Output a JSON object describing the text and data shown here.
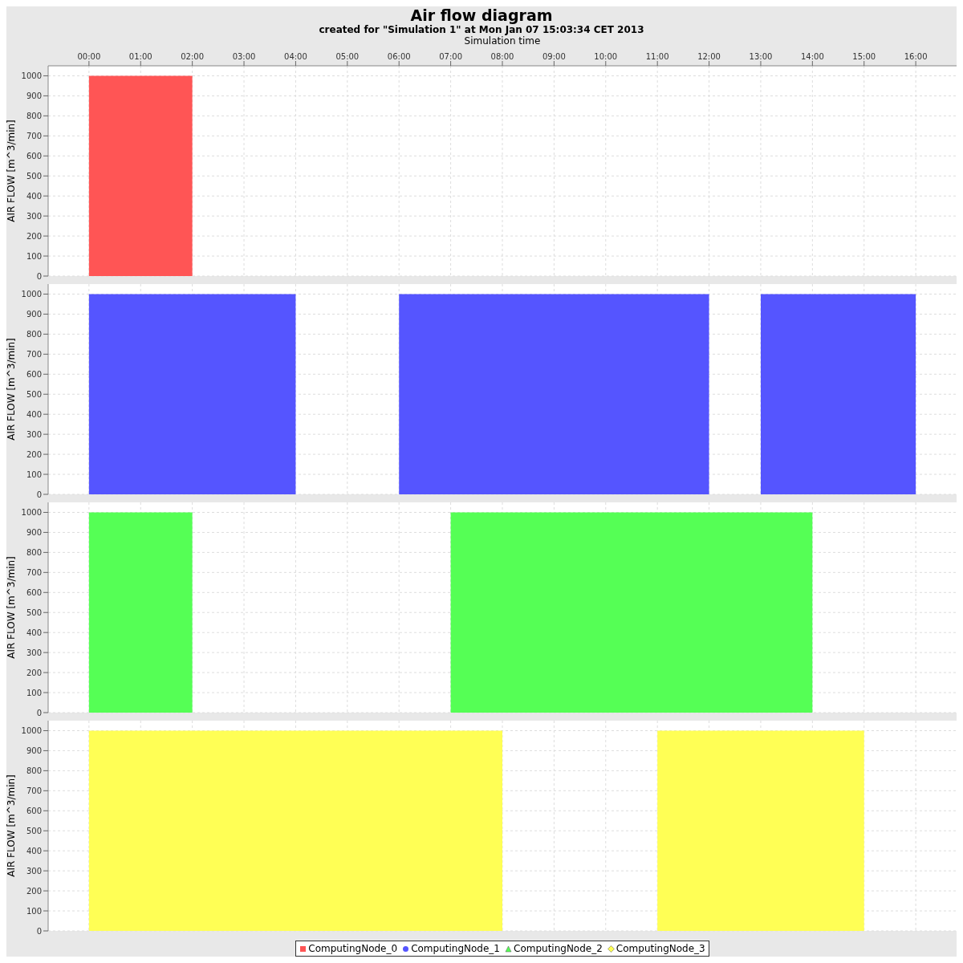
{
  "chart_data": [
    {
      "type": "area",
      "title": "Air flow diagram",
      "subtitle": "created for \"Simulation 1\" at Mon Jan 07 15:03:34 CET 2013",
      "xlabel": "Simulation time",
      "ylabel": "AIR FLOW [m^3/min]",
      "xlim": [
        -0.79,
        16.79
      ],
      "xticks": [
        {
          "value": 0,
          "label": "00:00"
        },
        {
          "value": 1,
          "label": "01:00"
        },
        {
          "value": 2,
          "label": "02:00"
        },
        {
          "value": 3,
          "label": "03:00"
        },
        {
          "value": 4,
          "label": "04:00"
        },
        {
          "value": 5,
          "label": "05:00"
        },
        {
          "value": 6,
          "label": "06:00"
        },
        {
          "value": 7,
          "label": "07:00"
        },
        {
          "value": 8,
          "label": "08:00"
        },
        {
          "value": 9,
          "label": "09:00"
        },
        {
          "value": 10,
          "label": "10:00"
        },
        {
          "value": 11,
          "label": "11:00"
        },
        {
          "value": 12,
          "label": "12:00"
        },
        {
          "value": 13,
          "label": "13:00"
        },
        {
          "value": 14,
          "label": "14:00"
        },
        {
          "value": 15,
          "label": "15:00"
        },
        {
          "value": 16,
          "label": "16:00"
        }
      ],
      "ylim": [
        0,
        1050
      ],
      "yticks": [
        0,
        100,
        200,
        300,
        400,
        500,
        600,
        700,
        800,
        900,
        1000
      ],
      "grid": true,
      "series": [
        {
          "name": "ComputingNode_0",
          "color": "#ff5555",
          "x": [
            0,
            2,
            2
          ],
          "values": [
            1000,
            1000,
            0
          ]
        }
      ]
    },
    {
      "type": "area",
      "ylabel": "AIR FLOW [m^3/min]",
      "xlim": [
        -0.79,
        16.79
      ],
      "xticks": [
        0,
        1,
        2,
        3,
        4,
        5,
        6,
        7,
        8,
        9,
        10,
        11,
        12,
        13,
        14,
        15,
        16
      ],
      "ylim": [
        0,
        1050
      ],
      "yticks": [
        0,
        100,
        200,
        300,
        400,
        500,
        600,
        700,
        800,
        900,
        1000
      ],
      "grid": true,
      "tick_labels": "y",
      "series": [
        {
          "name": "ComputingNode_1",
          "color": "#5555ff",
          "x": [
            0,
            4,
            4,
            6,
            6,
            12,
            12,
            13,
            13,
            16,
            16
          ],
          "values": [
            1000,
            1000,
            0,
            0,
            1000,
            1000,
            0,
            0,
            1000,
            1000,
            0
          ]
        }
      ]
    },
    {
      "type": "area",
      "ylabel": "AIR FLOW [m^3/min]",
      "xlim": [
        -0.79,
        16.79
      ],
      "xticks": [
        0,
        1,
        2,
        3,
        4,
        5,
        6,
        7,
        8,
        9,
        10,
        11,
        12,
        13,
        14,
        15,
        16
      ],
      "ylim": [
        0,
        1050
      ],
      "yticks": [
        0,
        100,
        200,
        300,
        400,
        500,
        600,
        700,
        800,
        900,
        1000
      ],
      "grid": true,
      "tick_labels": "y",
      "series": [
        {
          "name": "ComputingNode_2",
          "color": "#55ff55",
          "x": [
            0,
            2,
            2,
            7,
            7,
            14,
            14
          ],
          "values": [
            1000,
            1000,
            0,
            0,
            1000,
            1000,
            0
          ]
        }
      ]
    },
    {
      "type": "area",
      "ylabel": "AIR FLOW [m^3/min]",
      "xlim": [
        -0.79,
        16.79
      ],
      "xticks": [
        0,
        1,
        2,
        3,
        4,
        5,
        6,
        7,
        8,
        9,
        10,
        11,
        12,
        13,
        14,
        15,
        16
      ],
      "ylim": [
        0,
        1050
      ],
      "yticks": [
        0,
        100,
        200,
        300,
        400,
        500,
        600,
        700,
        800,
        900,
        1000
      ],
      "grid": true,
      "tick_labels": "y",
      "legend": "bottom",
      "series": [
        {
          "name": "ComputingNode_3",
          "color": "#ffff55",
          "x": [
            0,
            8,
            8,
            11,
            11,
            15,
            15
          ],
          "values": [
            1000,
            1000,
            0,
            0,
            1000,
            1000,
            0
          ]
        }
      ]
    }
  ]
}
